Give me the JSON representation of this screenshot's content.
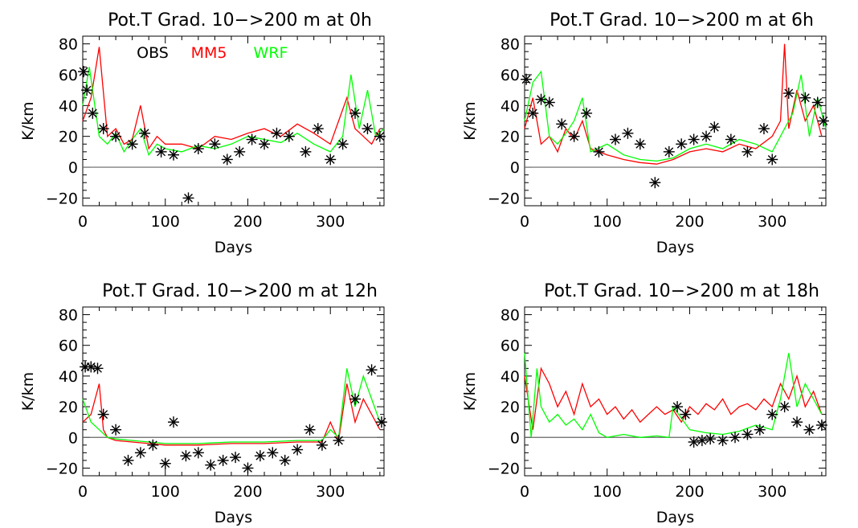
{
  "figure": {
    "legend": [
      {
        "name": "OBS",
        "color": "#000000"
      },
      {
        "name": "MM5",
        "color": "#ff0000"
      },
      {
        "name": "WRF",
        "color": "#00ff00"
      }
    ]
  },
  "chart_data": [
    {
      "type": "line",
      "title": "Pot.T Grad. 10−>200 m at 0h",
      "xlabel": "Days",
      "ylabel": "K/km",
      "xlim": [
        0,
        365
      ],
      "ylim": [
        -25,
        85
      ],
      "xticks": [
        "0",
        "100",
        "200",
        "300"
      ],
      "yticks": [
        "−20",
        "0",
        "20",
        "40",
        "60",
        "80"
      ],
      "zero_line": true,
      "legend_placement": "top-left",
      "series": [
        {
          "name": "OBS",
          "color": "#000000",
          "marker": "asterisk",
          "x": [
            1,
            5,
            12,
            25,
            40,
            60,
            75,
            95,
            110,
            128,
            140,
            160,
            175,
            190,
            205,
            220,
            235,
            250,
            270,
            285,
            300,
            315,
            330,
            345,
            360
          ],
          "y": [
            62,
            50,
            35,
            25,
            20,
            15,
            22,
            10,
            8,
            -20,
            12,
            15,
            5,
            10,
            18,
            15,
            22,
            20,
            10,
            25,
            5,
            15,
            35,
            25,
            20
          ]
        },
        {
          "name": "MM5",
          "color": "#ff0000",
          "x": [
            0,
            10,
            20,
            30,
            40,
            50,
            60,
            70,
            80,
            90,
            100,
            120,
            140,
            160,
            180,
            200,
            220,
            240,
            260,
            280,
            300,
            310,
            320,
            330,
            340,
            350,
            360
          ],
          "y": [
            30,
            45,
            78,
            20,
            25,
            15,
            18,
            40,
            12,
            20,
            15,
            15,
            12,
            20,
            18,
            22,
            25,
            20,
            28,
            22,
            15,
            30,
            45,
            25,
            20,
            15,
            25
          ]
        },
        {
          "name": "WRF",
          "color": "#00ff00",
          "x": [
            0,
            8,
            20,
            30,
            40,
            50,
            60,
            70,
            80,
            90,
            100,
            120,
            140,
            160,
            180,
            200,
            220,
            240,
            260,
            280,
            300,
            315,
            325,
            335,
            345,
            355,
            365
          ],
          "y": [
            40,
            65,
            20,
            15,
            22,
            10,
            18,
            25,
            8,
            15,
            12,
            10,
            14,
            12,
            15,
            20,
            18,
            16,
            22,
            15,
            10,
            20,
            60,
            25,
            50,
            20,
            25
          ]
        }
      ]
    },
    {
      "type": "line",
      "title": "Pot.T Grad. 10−>200 m at 6h",
      "xlabel": "Days",
      "ylabel": "K/km",
      "xlim": [
        0,
        365
      ],
      "ylim": [
        -25,
        85
      ],
      "xticks": [
        "0",
        "100",
        "200",
        "300"
      ],
      "yticks": [
        "−20",
        "0",
        "20",
        "40",
        "60",
        "80"
      ],
      "zero_line": true,
      "series": [
        {
          "name": "OBS",
          "color": "#000000",
          "marker": "asterisk",
          "x": [
            2,
            10,
            20,
            30,
            45,
            60,
            75,
            90,
            110,
            125,
            140,
            158,
            175,
            190,
            205,
            220,
            230,
            250,
            270,
            290,
            300,
            320,
            340,
            355,
            362
          ],
          "y": [
            57,
            35,
            44,
            42,
            28,
            20,
            35,
            10,
            18,
            22,
            15,
            -10,
            10,
            15,
            18,
            20,
            26,
            18,
            10,
            25,
            5,
            48,
            45,
            42,
            30
          ]
        },
        {
          "name": "MM5",
          "color": "#ff0000",
          "x": [
            0,
            10,
            20,
            30,
            40,
            50,
            60,
            70,
            80,
            100,
            120,
            140,
            160,
            180,
            200,
            220,
            240,
            260,
            280,
            300,
            310,
            315,
            320,
            330,
            340,
            350,
            360
          ],
          "y": [
            25,
            45,
            15,
            20,
            10,
            25,
            18,
            30,
            12,
            8,
            5,
            3,
            2,
            5,
            10,
            12,
            10,
            15,
            12,
            20,
            30,
            80,
            25,
            50,
            30,
            40,
            20
          ]
        },
        {
          "name": "WRF",
          "color": "#00ff00",
          "x": [
            0,
            10,
            20,
            30,
            40,
            50,
            60,
            70,
            80,
            100,
            120,
            140,
            160,
            180,
            200,
            220,
            240,
            260,
            280,
            300,
            315,
            325,
            335,
            345,
            355,
            365
          ],
          "y": [
            30,
            55,
            62,
            20,
            15,
            22,
            30,
            45,
            10,
            15,
            8,
            5,
            4,
            6,
            12,
            15,
            12,
            18,
            15,
            10,
            25,
            35,
            60,
            20,
            45,
            25
          ]
        }
      ]
    },
    {
      "type": "line",
      "title": "Pot.T Grad. 10−>200 m at 12h",
      "xlabel": "Days",
      "ylabel": "K/km",
      "xlim": [
        0,
        365
      ],
      "ylim": [
        -25,
        85
      ],
      "xticks": [
        "0",
        "100",
        "200",
        "300"
      ],
      "yticks": [
        "−20",
        "0",
        "20",
        "40",
        "60",
        "80"
      ],
      "zero_line": true,
      "series": [
        {
          "name": "OBS",
          "color": "#000000",
          "marker": "asterisk",
          "x": [
            3,
            10,
            18,
            25,
            40,
            55,
            70,
            85,
            100,
            110,
            125,
            140,
            155,
            170,
            185,
            200,
            215,
            230,
            245,
            260,
            275,
            290,
            310,
            330,
            350,
            362
          ],
          "y": [
            46,
            46,
            45,
            15,
            5,
            -15,
            -10,
            -5,
            -17,
            10,
            -12,
            -10,
            -18,
            -15,
            -13,
            -20,
            -12,
            -10,
            -15,
            -8,
            5,
            -5,
            -2,
            25,
            44,
            10
          ]
        },
        {
          "name": "MM5",
          "color": "#ff0000",
          "x": [
            0,
            10,
            20,
            25,
            30,
            40,
            60,
            80,
            100,
            140,
            180,
            220,
            260,
            290,
            300,
            310,
            320,
            330,
            340,
            350,
            360
          ],
          "y": [
            10,
            15,
            35,
            5,
            0,
            -2,
            -3,
            -4,
            -5,
            -5,
            -4,
            -4,
            -3,
            -3,
            10,
            -2,
            35,
            10,
            25,
            15,
            5
          ]
        },
        {
          "name": "WRF",
          "color": "#00ff00",
          "x": [
            0,
            10,
            20,
            30,
            40,
            60,
            80,
            100,
            140,
            180,
            220,
            260,
            290,
            300,
            310,
            320,
            330,
            340,
            350,
            360
          ],
          "y": [
            25,
            10,
            5,
            0,
            -1,
            -2,
            -3,
            -4,
            -4,
            -3,
            -3,
            -2,
            -2,
            5,
            0,
            45,
            20,
            40,
            25,
            10
          ]
        }
      ]
    },
    {
      "type": "line",
      "title": "Pot.T Grad. 10−>200 m at 18h",
      "xlabel": "Days",
      "ylabel": "K/km",
      "xlim": [
        0,
        365
      ],
      "ylim": [
        -25,
        85
      ],
      "xticks": [
        "0",
        "100",
        "200",
        "300"
      ],
      "yticks": [
        "−20",
        "0",
        "20",
        "40",
        "60",
        "80"
      ],
      "zero_line": true,
      "series": [
        {
          "name": "OBS",
          "color": "#000000",
          "marker": "asterisk",
          "x": [
            185,
            195,
            205,
            215,
            225,
            240,
            255,
            270,
            285,
            300,
            315,
            330,
            345,
            360
          ],
          "y": [
            20,
            15,
            -3,
            -2,
            -1,
            -2,
            0,
            2,
            5,
            15,
            20,
            10,
            5,
            8
          ]
        },
        {
          "name": "MM5",
          "color": "#ff0000",
          "x": [
            0,
            10,
            20,
            30,
            40,
            50,
            60,
            70,
            80,
            90,
            100,
            110,
            120,
            130,
            140,
            150,
            160,
            170,
            180,
            190,
            200,
            210,
            220,
            230,
            240,
            250,
            260,
            270,
            280,
            290,
            300,
            310,
            320,
            330,
            340,
            350,
            360
          ],
          "y": [
            40,
            5,
            45,
            35,
            20,
            30,
            15,
            35,
            20,
            25,
            15,
            20,
            12,
            18,
            10,
            15,
            20,
            15,
            18,
            10,
            20,
            15,
            22,
            18,
            25,
            15,
            20,
            22,
            18,
            25,
            20,
            35,
            25,
            40,
            20,
            30,
            15
          ]
        },
        {
          "name": "WRF",
          "color": "#00ff00",
          "x": [
            0,
            8,
            15,
            20,
            30,
            40,
            50,
            60,
            70,
            80,
            90,
            100,
            120,
            140,
            160,
            175,
            180,
            200,
            220,
            240,
            260,
            280,
            300,
            310,
            320,
            330,
            340,
            350,
            360
          ],
          "y": [
            55,
            0,
            45,
            20,
            10,
            15,
            8,
            12,
            5,
            15,
            3,
            0,
            2,
            0,
            1,
            0,
            20,
            5,
            3,
            2,
            4,
            8,
            5,
            25,
            55,
            20,
            35,
            25,
            15
          ]
        }
      ]
    }
  ]
}
